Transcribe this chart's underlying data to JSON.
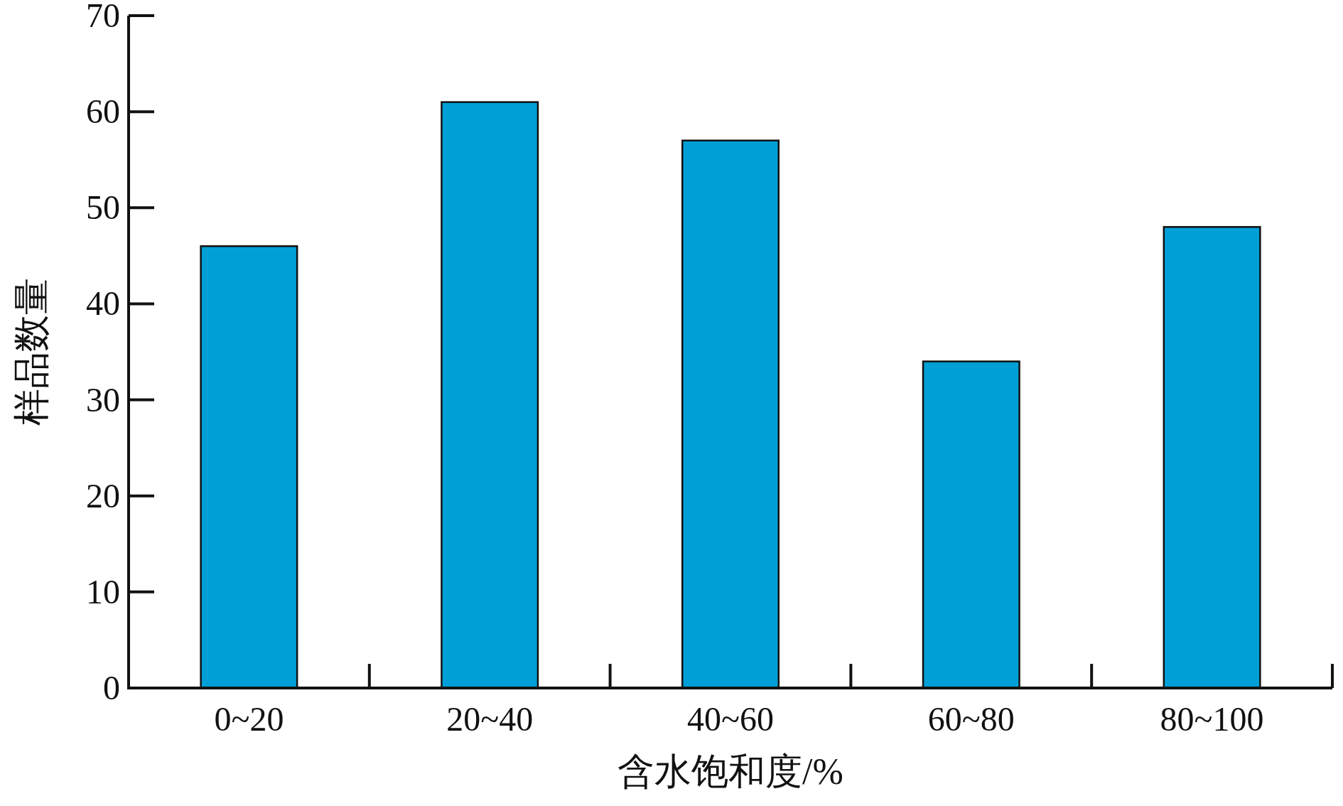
{
  "chart_data": {
    "type": "bar",
    "xlabel": "含水饱和度/%",
    "ylabel": "样品数量",
    "categories": [
      "0~20",
      "20~40",
      "40~60",
      "60~80",
      "80~100"
    ],
    "values": [
      46,
      61,
      57,
      34,
      48
    ],
    "color": "#009fd6",
    "ylim": [
      0,
      70
    ],
    "yticks": [
      0,
      10,
      20,
      30,
      40,
      50,
      60,
      70
    ]
  }
}
